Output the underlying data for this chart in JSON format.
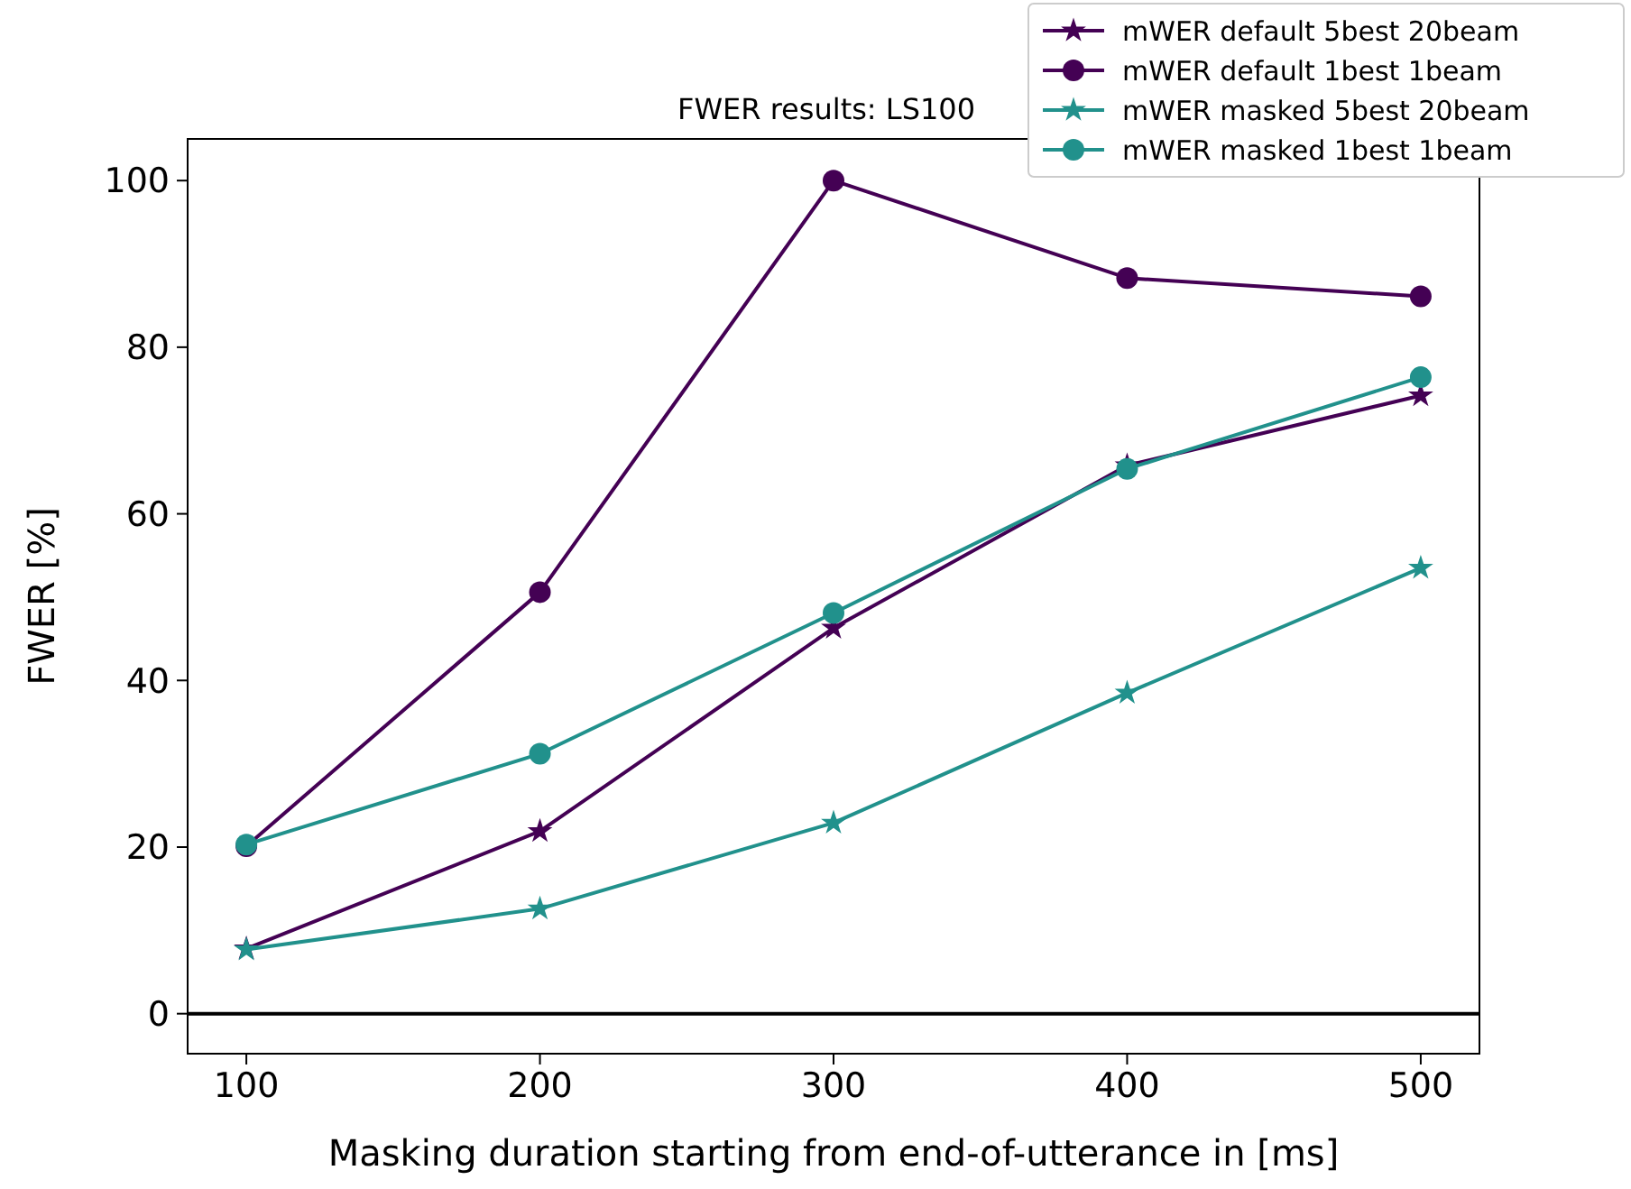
{
  "chart_data": {
    "type": "line",
    "title": "FWER results: LS100",
    "xlabel": "Masking duration starting from end-of-utterance in [ms]",
    "ylabel": "FWER [%]",
    "x": [
      100,
      200,
      300,
      400,
      500
    ],
    "series": [
      {
        "name": "mWER default 5best 20beam",
        "color": "#440154",
        "marker": "star",
        "values": [
          7.8,
          21.9,
          46.3,
          65.8,
          74.2
        ]
      },
      {
        "name": "mWER default 1best 1beam",
        "color": "#440154",
        "marker": "circle",
        "values": [
          20.1,
          50.6,
          100,
          88.3,
          86.1
        ]
      },
      {
        "name": "mWER masked 5best 20beam",
        "color": "#21918c",
        "marker": "star",
        "values": [
          7.7,
          12.6,
          22.9,
          38.5,
          53.5
        ]
      },
      {
        "name": "mWER masked 1best 1beam",
        "color": "#21918c",
        "marker": "circle",
        "values": [
          20.3,
          31.2,
          48.1,
          65.4,
          76.4
        ]
      }
    ],
    "xlim": [
      80,
      520
    ],
    "ylim": [
      -4.8,
      105
    ],
    "xticks": [
      100,
      200,
      300,
      400,
      500
    ],
    "yticks": [
      0,
      20,
      40,
      60,
      80,
      100
    ],
    "ref_lines": [
      {
        "axis": "y",
        "value": 0,
        "label": null,
        "color": "#000000"
      }
    ],
    "legend": "top right",
    "grid": false
  }
}
